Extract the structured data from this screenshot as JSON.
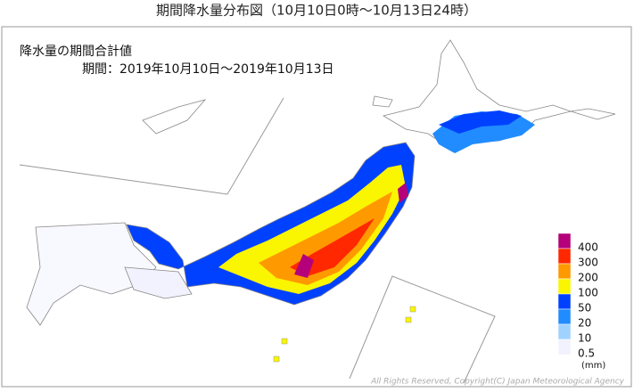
{
  "header": {
    "title": "期間降水量分布図（10月10日0時～10月13日24時）"
  },
  "map": {
    "heading": "降水量の期間合計値",
    "period": "期間：2019年10月10日～2019年10月13日",
    "legend": {
      "unit": "(mm)",
      "levels": [
        {
          "label": "400",
          "color": "#b4007a"
        },
        {
          "label": "300",
          "color": "#ff2800"
        },
        {
          "label": "200",
          "color": "#ff9900"
        },
        {
          "label": "100",
          "color": "#faf500"
        },
        {
          "label": "50",
          "color": "#0041ff"
        },
        {
          "label": "20",
          "color": "#218cff"
        },
        {
          "label": "10",
          "color": "#a0d2ff"
        },
        {
          "label": "0.5",
          "color": "#f2f2ff"
        }
      ]
    },
    "copyright": "All Rights Reserved, Copyright(C) Japan Meteorological Agency"
  }
}
